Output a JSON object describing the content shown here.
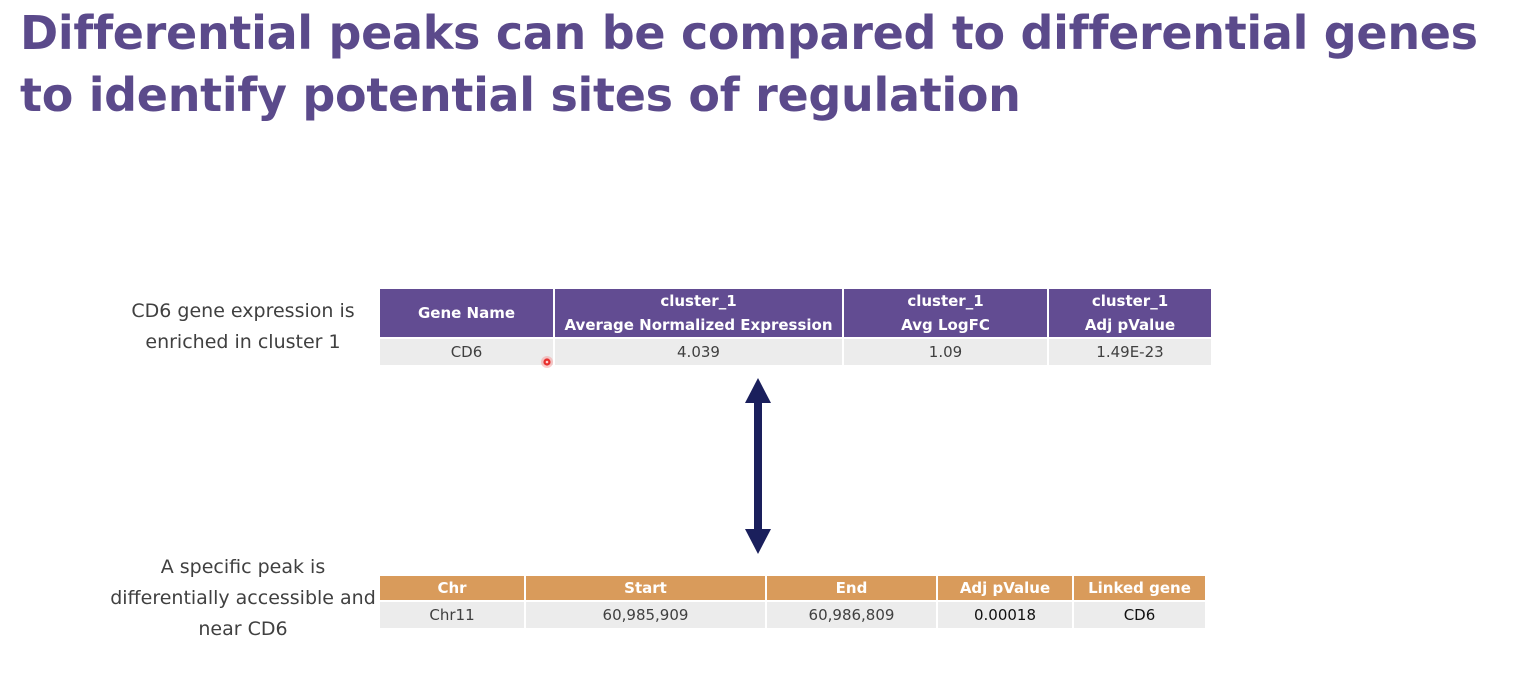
{
  "slide": {
    "title": "Differential peaks can be compared to differential genes to identify potential sites of regulation",
    "gene_caption": "CD6 gene expression is enriched in cluster 1",
    "peak_caption": "A specific peak is differentially accessible and near CD6"
  },
  "gene_table": {
    "header_color": "#624c92",
    "headers": [
      {
        "line1": "Gene Name",
        "line2": ""
      },
      {
        "line1": "cluster_1",
        "line2": "Average Normalized Expression"
      },
      {
        "line1": "cluster_1",
        "line2": "Avg LogFC"
      },
      {
        "line1": "cluster_1",
        "line2": "Adj pValue"
      }
    ],
    "row": [
      "CD6",
      "4.039",
      "1.09",
      "1.49E-23"
    ]
  },
  "peak_table": {
    "header_color": "#d99b5b",
    "headers": [
      "Chr",
      "Start",
      "End",
      "Adj pValue",
      "Linked gene"
    ],
    "row": [
      "Chr11",
      "60,985,909",
      "60,986,809",
      "0.00018",
      "CD6"
    ]
  },
  "arrow_color": "#1a1f5c",
  "icons": {
    "arrow": "double-headed-vertical-arrow-icon",
    "cursor": "red-pointer-dot-icon"
  }
}
